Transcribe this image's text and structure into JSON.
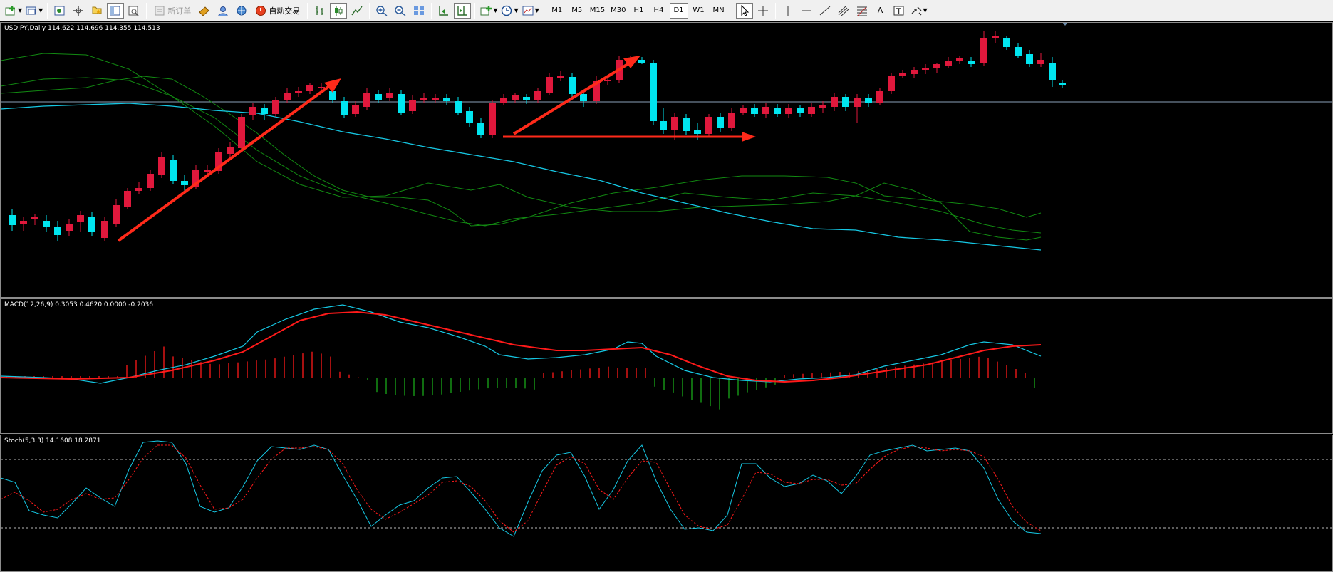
{
  "toolbar": {
    "new_order_label": "新订单",
    "autotrading_label": "自动交易",
    "timeframes": [
      "M1",
      "M5",
      "M15",
      "M30",
      "H1",
      "H4",
      "D1",
      "W1",
      "MN"
    ],
    "active_timeframe": "D1",
    "text_tool_label": "A"
  },
  "main_chart": {
    "label": "USDJPY,Daily  114.622 114.696 114.355 114.513",
    "symbol": "USDJPY",
    "period": "Daily",
    "ohlc": {
      "open": 114.622,
      "high": 114.696,
      "low": 114.355,
      "close": 114.513
    }
  },
  "macd": {
    "label": "MACD(12,26,9) 0.3053 0.4620 0.0000 -0.2036",
    "params": "12,26,9",
    "values": [
      0.3053,
      0.462,
      0.0,
      -0.2036
    ]
  },
  "stoch": {
    "label": "Stoch(5,3,3) 14.1608 18.2871",
    "params": "5,3,3",
    "k": 14.1608,
    "d": 18.2871
  },
  "colors": {
    "bull": "#e0183c",
    "bear": "#00e6f0",
    "band": "#128a12",
    "ma": "#16c8e4",
    "signal": "#ff1a1a",
    "arrow": "#ff2a1a",
    "hist_pos": "#ff1a1a",
    "hist_neg": "#1aa81a"
  }
}
